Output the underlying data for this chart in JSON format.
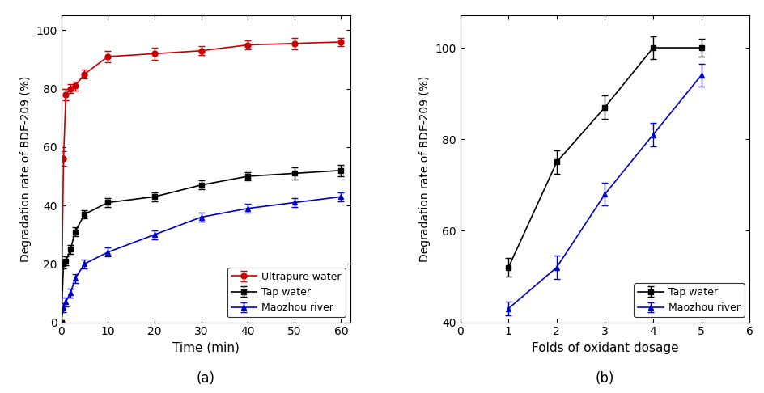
{
  "plot_a": {
    "time": [
      0,
      0.5,
      1,
      2,
      3,
      5,
      10,
      20,
      30,
      40,
      50,
      60
    ],
    "ultrapure_y": [
      0,
      56,
      78,
      80,
      81,
      85,
      91,
      92,
      93,
      95,
      95.5,
      96
    ],
    "ultrapure_yerr": [
      0,
      2.5,
      2.0,
      1.5,
      1.5,
      1.5,
      2.0,
      2.0,
      1.5,
      1.5,
      2.0,
      1.5
    ],
    "tap_y": [
      0,
      20,
      21,
      25,
      31,
      37,
      41,
      43,
      47,
      50,
      51,
      52
    ],
    "tap_yerr": [
      0,
      1.5,
      1.5,
      1.5,
      1.5,
      1.5,
      1.5,
      1.5,
      1.5,
      1.5,
      2.0,
      2.0
    ],
    "maozhou_y": [
      0,
      5,
      7,
      10,
      15,
      20,
      24,
      30,
      36,
      39,
      41,
      43
    ],
    "maozhou_yerr": [
      0,
      1.5,
      1.5,
      1.5,
      1.5,
      1.5,
      1.5,
      1.5,
      1.5,
      1.5,
      1.5,
      1.5
    ],
    "ultrapure_color": "#cc0000",
    "tap_color": "#000000",
    "maozhou_color": "#0000cc",
    "ultrapure_marker": "o",
    "tap_marker": "s",
    "maozhou_marker": "^",
    "ultrapure_label": "Ultrapure water",
    "tap_label": "Tap water",
    "maozhou_label": "Maozhou river",
    "xlabel": "Time (min)",
    "ylabel": "Degradation rate of BDE-209 (%)",
    "xlim": [
      0,
      62
    ],
    "ylim": [
      0,
      105
    ],
    "yticks": [
      0,
      20,
      40,
      60,
      80,
      100
    ],
    "xticks": [
      0,
      10,
      20,
      30,
      40,
      50,
      60
    ],
    "panel_label": "(a)"
  },
  "plot_b": {
    "folds": [
      1,
      2,
      3,
      4,
      5
    ],
    "tap_y": [
      52,
      75,
      87,
      100,
      100
    ],
    "tap_yerr": [
      2.0,
      2.5,
      2.5,
      2.5,
      2.0
    ],
    "maozhou_y": [
      43,
      52,
      68,
      81,
      94
    ],
    "maozhou_yerr": [
      1.5,
      2.5,
      2.5,
      2.5,
      2.5
    ],
    "tap_color": "#000000",
    "maozhou_color": "#0000cc",
    "tap_marker": "s",
    "maozhou_marker": "^",
    "tap_label": "Tap water",
    "maozhou_label": "Maozhou river",
    "xlabel": "Folds of oxidant dosage",
    "ylabel": "Degradation rate of BDE-209 (%)",
    "xlim": [
      0,
      6
    ],
    "ylim": [
      40,
      107
    ],
    "yticks": [
      40,
      60,
      80,
      100
    ],
    "xticks": [
      0,
      1,
      2,
      3,
      4,
      5,
      6
    ],
    "panel_label": "(b)"
  }
}
